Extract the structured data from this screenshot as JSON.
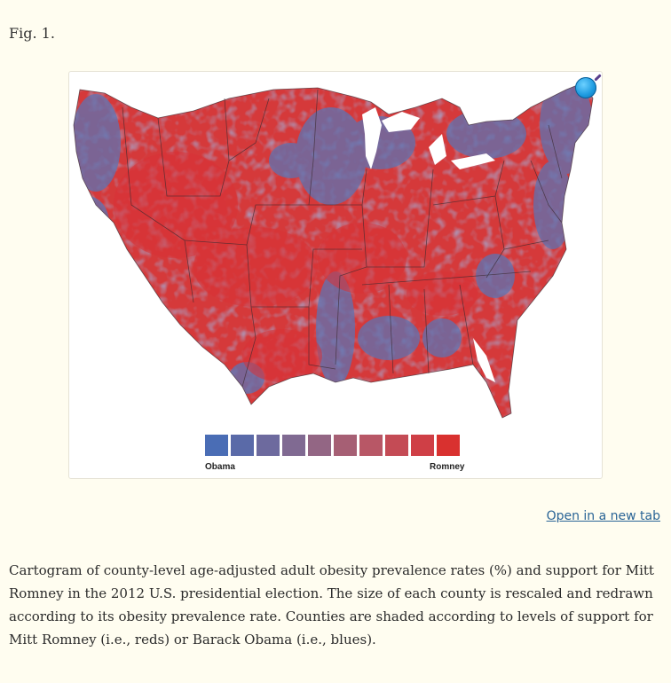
{
  "figure": {
    "label": "Fig. 1.",
    "open_link": "Open in a new tab",
    "zoom_icon": "magnifier-icon",
    "caption": "Cartogram of county-level age-adjusted adult obesity prevalence rates (%) and support for Mitt Romney in the 2012 U.S. presidential election. The size of each county is rescaled and redrawn according to its obesity prevalence rate. Counties are shaded according to levels of support for Mitt Romney (i.e., reds) or Barack Obama (i.e., blues)."
  },
  "legend": {
    "left_label": "Obama",
    "right_label": "Romney",
    "colors": [
      "#4a6db5",
      "#5a6aa8",
      "#6d6a9e",
      "#806a92",
      "#936684",
      "#a65f74",
      "#b85766",
      "#c44b55",
      "#cf3f46",
      "#d9312f"
    ]
  },
  "map": {
    "base_color": "#d5393a",
    "blue_color": "#5d73b3",
    "border_color": "#3a2a30"
  }
}
